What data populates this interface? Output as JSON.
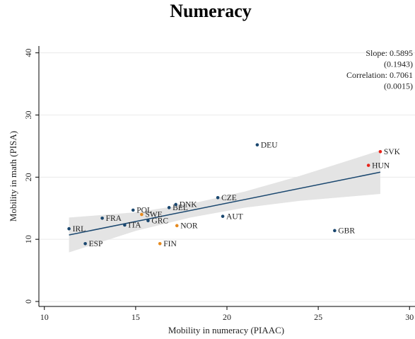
{
  "chart_data": {
    "type": "scatter",
    "title": "Numeracy",
    "xlabel": "Mobility in numeracy (PIAAC)",
    "ylabel": "Mobility in math (PISA)",
    "xlim": [
      9.7,
      30.3
    ],
    "xticks": [
      10,
      15,
      20,
      25,
      30
    ],
    "ylim": [
      -0.8,
      41.1
    ],
    "yticks": [
      0,
      10,
      20,
      30,
      40
    ],
    "grid": true,
    "points": [
      {
        "label": "IRL",
        "x": 11.35,
        "y": 11.7,
        "color": "#1a476f"
      },
      {
        "label": "ESP",
        "x": 12.24,
        "y": 9.3,
        "color": "#1a476f"
      },
      {
        "label": "FRA",
        "x": 13.17,
        "y": 13.4,
        "color": "#1a476f"
      },
      {
        "label": "POL",
        "x": 14.86,
        "y": 14.7,
        "color": "#1a476f"
      },
      {
        "label": "SWE",
        "x": 15.33,
        "y": 14.0,
        "color": "#e68a1f"
      },
      {
        "label": "ITA",
        "x": 14.4,
        "y": 12.3,
        "color": "#1a476f"
      },
      {
        "label": "GRC",
        "x": 15.68,
        "y": 13.0,
        "color": "#1a476f"
      },
      {
        "label": "BEL",
        "x": 16.83,
        "y": 15.1,
        "color": "#1a476f"
      },
      {
        "label": "DNK",
        "x": 17.2,
        "y": 15.6,
        "color": "#1a476f"
      },
      {
        "label": "NOR",
        "x": 17.26,
        "y": 12.2,
        "color": "#e68a1f"
      },
      {
        "label": "FIN",
        "x": 16.33,
        "y": 9.3,
        "color": "#e68a1f"
      },
      {
        "label": "CZE",
        "x": 19.5,
        "y": 16.7,
        "color": "#1a476f"
      },
      {
        "label": "AUT",
        "x": 19.77,
        "y": 13.7,
        "color": "#1a476f"
      },
      {
        "label": "DEU",
        "x": 21.66,
        "y": 25.2,
        "color": "#1a476f"
      },
      {
        "label": "GBR",
        "x": 25.9,
        "y": 11.4,
        "color": "#1a476f"
      },
      {
        "label": "SVK",
        "x": 28.4,
        "y": 24.1,
        "color": "#e8231a"
      },
      {
        "label": "HUN",
        "x": 27.75,
        "y": 21.9,
        "color": "#e8231a"
      }
    ],
    "fit": {
      "x": [
        11.35,
        28.4
      ],
      "y": [
        10.7,
        20.8
      ],
      "color": "#1a476f"
    },
    "band": {
      "x": [
        11.35,
        15,
        18,
        21,
        24,
        28.4
      ],
      "lower": [
        7.9,
        11.35,
        13.5,
        15.1,
        16.2,
        17.3
      ],
      "upper": [
        13.5,
        14.35,
        15.7,
        17.7,
        20.2,
        24.3
      ],
      "color": "#e4e4e4"
    },
    "annotations": [
      "Slope: 0.5895",
      "(0.1943)",
      "Correlation: 0.7061",
      "(0.0015)"
    ]
  }
}
